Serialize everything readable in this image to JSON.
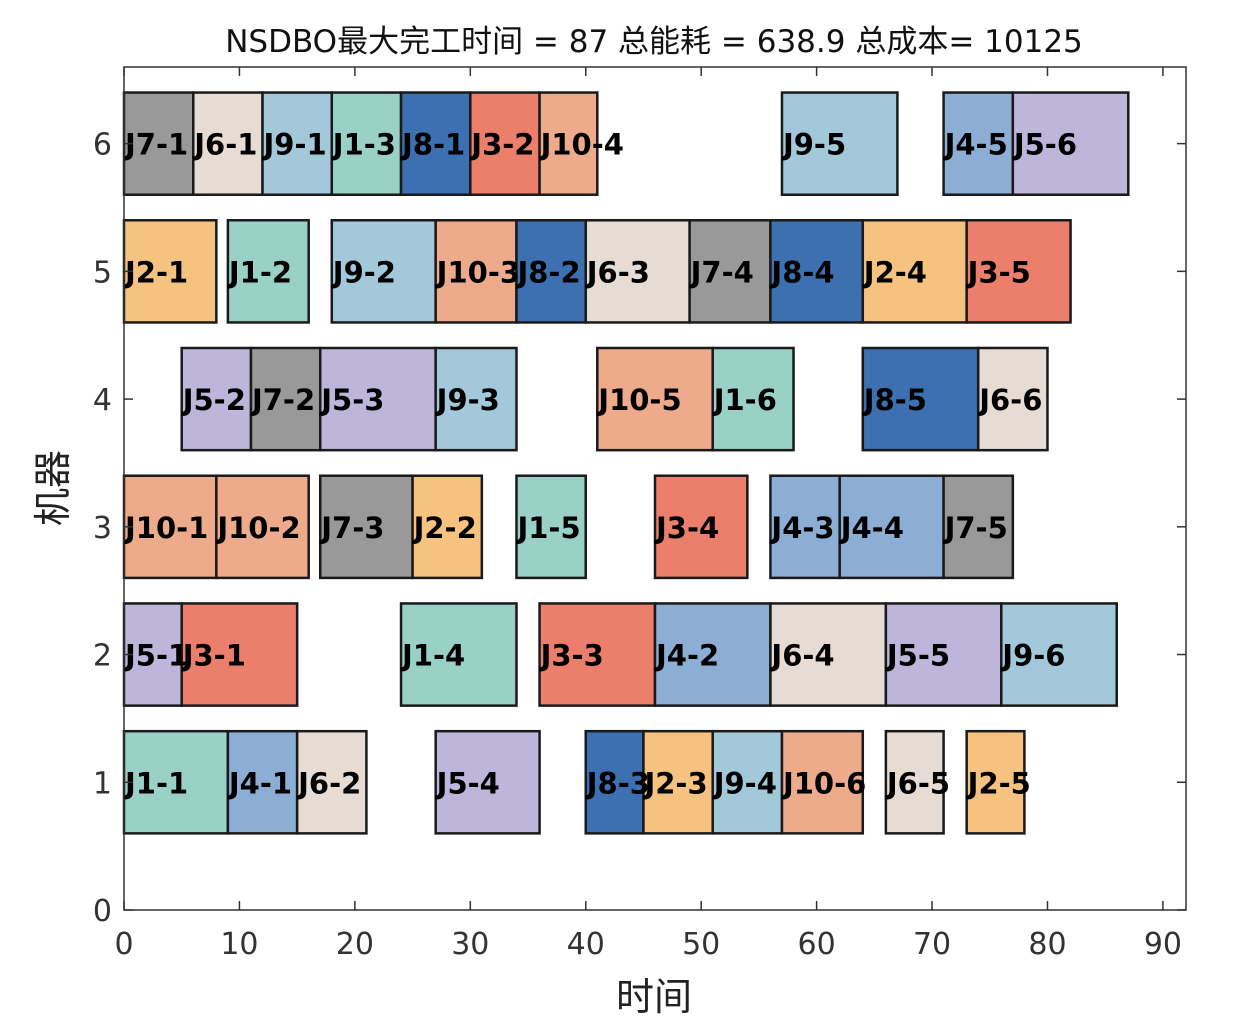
{
  "chart_data": {
    "type": "gantt",
    "title": "NSDBO最大完工时间 = 87 总能耗 = 638.9 总成本= 10125",
    "xlabel": "时间",
    "ylabel": "机器",
    "xlim": [
      0,
      92
    ],
    "ylim": [
      0,
      6.6
    ],
    "xticks": [
      0,
      10,
      20,
      30,
      40,
      50,
      60,
      70,
      80,
      90
    ],
    "yticks": [
      0,
      1,
      2,
      3,
      4,
      5,
      6
    ],
    "job_colors": {
      "J1": "#99d1c7",
      "J2": "#f6c27f",
      "J3": "#ec7e6c",
      "J4": "#8caed5",
      "J5": "#bdb6da",
      "J6": "#e6dcd4",
      "J7": "#999999",
      "J8": "#3c70b0",
      "J9": "#a2c8da",
      "J10": "#eeab8c"
    },
    "operations": [
      {
        "machine": 6,
        "start": 0,
        "end": 6,
        "label": "J7-1",
        "job": "J7"
      },
      {
        "machine": 6,
        "start": 6,
        "end": 12,
        "label": "J6-1",
        "job": "J6"
      },
      {
        "machine": 6,
        "start": 12,
        "end": 18,
        "label": "J9-1",
        "job": "J9"
      },
      {
        "machine": 6,
        "start": 18,
        "end": 24,
        "label": "J1-3",
        "job": "J1"
      },
      {
        "machine": 6,
        "start": 24,
        "end": 30,
        "label": "J8-1",
        "job": "J8"
      },
      {
        "machine": 6,
        "start": 30,
        "end": 36,
        "label": "J3-2",
        "job": "J3"
      },
      {
        "machine": 6,
        "start": 36,
        "end": 41,
        "label": "J10-4",
        "job": "J10"
      },
      {
        "machine": 6,
        "start": 57,
        "end": 67,
        "label": "J9-5",
        "job": "J9"
      },
      {
        "machine": 6,
        "start": 71,
        "end": 77,
        "label": "J4-5",
        "job": "J4"
      },
      {
        "machine": 6,
        "start": 77,
        "end": 87,
        "label": "J5-6",
        "job": "J5"
      },
      {
        "machine": 5,
        "start": 0,
        "end": 8,
        "label": "J2-1",
        "job": "J2"
      },
      {
        "machine": 5,
        "start": 9,
        "end": 16,
        "label": "J1-2",
        "job": "J1"
      },
      {
        "machine": 5,
        "start": 18,
        "end": 27,
        "label": "J9-2",
        "job": "J9"
      },
      {
        "machine": 5,
        "start": 27,
        "end": 34,
        "label": "J10-3",
        "job": "J10"
      },
      {
        "machine": 5,
        "start": 34,
        "end": 40,
        "label": "J8-2",
        "job": "J8"
      },
      {
        "machine": 5,
        "start": 40,
        "end": 49,
        "label": "J6-3",
        "job": "J6"
      },
      {
        "machine": 5,
        "start": 49,
        "end": 56,
        "label": "J7-4",
        "job": "J7"
      },
      {
        "machine": 5,
        "start": 56,
        "end": 64,
        "label": "J8-4",
        "job": "J8"
      },
      {
        "machine": 5,
        "start": 64,
        "end": 73,
        "label": "J2-4",
        "job": "J2"
      },
      {
        "machine": 5,
        "start": 73,
        "end": 82,
        "label": "J3-5",
        "job": "J3"
      },
      {
        "machine": 4,
        "start": 5,
        "end": 11,
        "label": "J5-2",
        "job": "J5"
      },
      {
        "machine": 4,
        "start": 11,
        "end": 17,
        "label": "J7-2",
        "job": "J7"
      },
      {
        "machine": 4,
        "start": 17,
        "end": 27,
        "label": "J5-3",
        "job": "J5"
      },
      {
        "machine": 4,
        "start": 27,
        "end": 34,
        "label": "J9-3",
        "job": "J9"
      },
      {
        "machine": 4,
        "start": 41,
        "end": 51,
        "label": "J10-5",
        "job": "J10"
      },
      {
        "machine": 4,
        "start": 51,
        "end": 58,
        "label": "J1-6",
        "job": "J1"
      },
      {
        "machine": 4,
        "start": 64,
        "end": 74,
        "label": "J8-5",
        "job": "J8"
      },
      {
        "machine": 4,
        "start": 74,
        "end": 80,
        "label": "J6-6",
        "job": "J6"
      },
      {
        "machine": 3,
        "start": 0,
        "end": 8,
        "label": "J10-1",
        "job": "J10"
      },
      {
        "machine": 3,
        "start": 8,
        "end": 16,
        "label": "J10-2",
        "job": "J10"
      },
      {
        "machine": 3,
        "start": 17,
        "end": 25,
        "label": "J7-3",
        "job": "J7"
      },
      {
        "machine": 3,
        "start": 25,
        "end": 31,
        "label": "J2-2",
        "job": "J2"
      },
      {
        "machine": 3,
        "start": 34,
        "end": 40,
        "label": "J1-5",
        "job": "J1"
      },
      {
        "machine": 3,
        "start": 46,
        "end": 54,
        "label": "J3-4",
        "job": "J3"
      },
      {
        "machine": 3,
        "start": 56,
        "end": 62,
        "label": "J4-3",
        "job": "J4"
      },
      {
        "machine": 3,
        "start": 62,
        "end": 71,
        "label": "J4-4",
        "job": "J4"
      },
      {
        "machine": 3,
        "start": 71,
        "end": 77,
        "label": "J7-5",
        "job": "J7"
      },
      {
        "machine": 2,
        "start": 0,
        "end": 5,
        "label": "J5-1",
        "job": "J5"
      },
      {
        "machine": 2,
        "start": 5,
        "end": 15,
        "label": "J3-1",
        "job": "J3"
      },
      {
        "machine": 2,
        "start": 24,
        "end": 34,
        "label": "J1-4",
        "job": "J1"
      },
      {
        "machine": 2,
        "start": 36,
        "end": 46,
        "label": "J3-3",
        "job": "J3"
      },
      {
        "machine": 2,
        "start": 46,
        "end": 56,
        "label": "J4-2",
        "job": "J4"
      },
      {
        "machine": 2,
        "start": 56,
        "end": 66,
        "label": "J6-4",
        "job": "J6"
      },
      {
        "machine": 2,
        "start": 66,
        "end": 76,
        "label": "J5-5",
        "job": "J5"
      },
      {
        "machine": 2,
        "start": 76,
        "end": 86,
        "label": "J9-6",
        "job": "J9"
      },
      {
        "machine": 1,
        "start": 0,
        "end": 9,
        "label": "J1-1",
        "job": "J1"
      },
      {
        "machine": 1,
        "start": 9,
        "end": 15,
        "label": "J4-1",
        "job": "J4"
      },
      {
        "machine": 1,
        "start": 15,
        "end": 21,
        "label": "J6-2",
        "job": "J6"
      },
      {
        "machine": 1,
        "start": 27,
        "end": 36,
        "label": "J5-4",
        "job": "J5"
      },
      {
        "machine": 1,
        "start": 40,
        "end": 45,
        "label": "J8-3",
        "job": "J8"
      },
      {
        "machine": 1,
        "start": 45,
        "end": 51,
        "label": "J2-3",
        "job": "J2"
      },
      {
        "machine": 1,
        "start": 51,
        "end": 57,
        "label": "J9-4",
        "job": "J9"
      },
      {
        "machine": 1,
        "start": 57,
        "end": 64,
        "label": "J10-6",
        "job": "J10"
      },
      {
        "machine": 1,
        "start": 66,
        "end": 71,
        "label": "J6-5",
        "job": "J6"
      },
      {
        "machine": 1,
        "start": 73,
        "end": 78,
        "label": "J2-5",
        "job": "J2"
      }
    ]
  }
}
